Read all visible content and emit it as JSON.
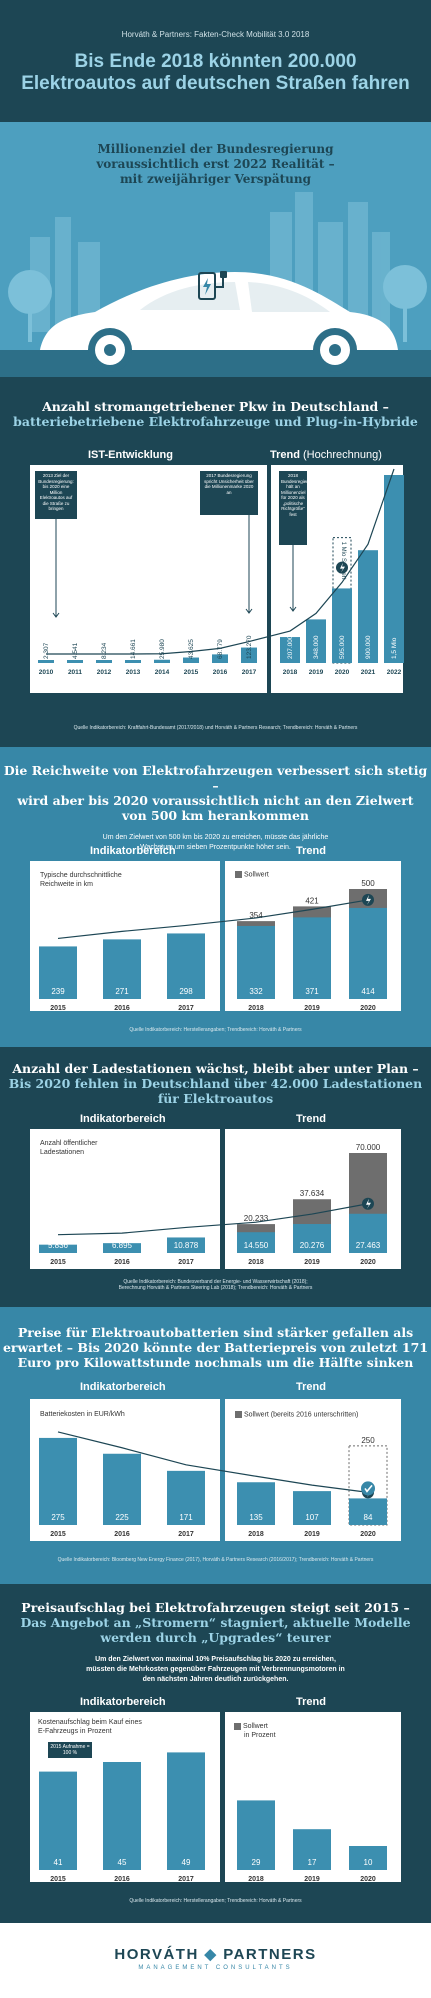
{
  "header": {
    "kicker": "Horváth & Partners: Fakten-Check Mobilität 3.0 2018",
    "title_1": "Bis Ende 2018 könnten 200.000",
    "title_2": "Elektroautos auf deutschen Straßen fahren"
  },
  "hero": {
    "line_1": "Millionenziel der Bundesregierung",
    "line_2": "voraussichtlich erst 2022 Realität –",
    "line_3": "mit zweijähriger Verspätung",
    "icon": "charging-plug-icon"
  },
  "s1": {
    "title_1": "Anzahl stromangetriebener Pkw in Deutschland –",
    "title_2": "batteriebetriebene Elektrofahrzeuge und Plug-in-Hybride",
    "label_ist": "IST-Entwicklung",
    "label_trend": "Trend",
    "label_trend_sub": "(Hochrechnung)",
    "note_2013": "2013 Ziel der Bundesregierung: bis 2020 eine Million Elektroautos auf die Straße zu bringen",
    "note_2017": "2017 Bundesregierung spricht Unsicherheit über die Millionenmarke 2020 an",
    "note_2018": "2018 Bundesregierung hält an Millionenziel für 2020 als „politische Richtgröße“ fest",
    "target_label": "1 Mio Sollwert",
    "source": "Quelle Indikatorbereich: Kraftfahrt-Bundesamt (2017/2018) und Horváth & Partners Research; Trendbereich: Horváth & Partners"
  },
  "s2": {
    "title_1": "Die Reichweite von Elektrofahrzeugen verbessert sich stetig –",
    "title_2": "wird aber bis 2020 voraussichtlich nicht an den Zielwert",
    "title_3": "von 500 km herankommen",
    "subtitle_1": "Um den Zielwert von 500 km bis 2020 zu erreichen, müsste das jährliche",
    "subtitle_2": "Wachstum um sieben Prozentpunkte höher sein.",
    "label_ind": "Indikatorbereich",
    "label_trend": "Trend",
    "panel_label_1": "Typische durchschnittliche",
    "panel_label_2": "Reichweite in km",
    "legend": "Sollwert",
    "source": "Quelle Indikatorbereich: Herstellerangaben; Trendbereich: Horváth & Partners"
  },
  "s3": {
    "title_1": "Anzahl der Ladestationen wächst, bleibt aber unter Plan –",
    "title_2": "Bis 2020 fehlen in Deutschland über 42.000 Ladestationen",
    "title_3": "für Elektroautos",
    "label_ind": "Indikatorbereich",
    "label_trend": "Trend",
    "panel_label_1": "Anzahl öffentlicher",
    "panel_label_2": "Ladestationen",
    "source_1": "Quelle Indikatorbereich: Bundesverband der Energie- und Wasserwirtschaft (2018);",
    "source_2": "Berechnung Horváth & Partners Steering Lab (2018); Trendbereich: Horváth & Partners"
  },
  "s4": {
    "title_1": "Preise für Elektroautobatterien sind stärker gefallen als",
    "title_2": "erwartet – Bis 2020 könnte der Batteriepreis von zuletzt 171",
    "title_3": "Euro pro Kilowattstunde nochmals um die Hälfte sinken",
    "label_ind": "Indikatorbereich",
    "label_trend": "Trend",
    "panel_label": "Batteriekosten in EUR/kWh",
    "legend": "Sollwert (bereits 2016 unterschritten)",
    "source": "Quelle Indikatorbereich: Bloomberg New Energy Finance (2017), Horváth & Partners Research (2016/2017); Trendbereich: Horváth & Partners"
  },
  "s5": {
    "title_1": "Preisaufschlag bei Elektrofahrzeugen steigt seit 2015 –",
    "title_2": "Das Angebot an „Stromern“ stagniert, aktuelle Modelle",
    "title_3": "werden durch „Upgrades“ teurer",
    "subtitle_1": "Um den Zielwert von maximal 10% Preisaufschlag bis 2020 zu erreichen,",
    "subtitle_2": "müssten die Mehrkosten gegenüber Fahrzeugen mit Verbrennungsmotoren in",
    "subtitle_3": "den nächsten Jahren deutlich zurückgehen.",
    "label_ind": "Indikatorbereich",
    "label_trend": "Trend",
    "panel_label_1": "Kostenaufschlag beim Kauf eines",
    "panel_label_2": "E-Fahrzeugs in Prozent",
    "note": "2015 Aufnahme = 100 %",
    "legend_1": "Sollwert",
    "legend_2": "in Prozent",
    "source": "Quelle Indikatorbereich: Herstellerangaben; Trendbereich: Horváth & Partners"
  },
  "footer": {
    "logo_1": "HORVÁTH",
    "logo_2": "PARTNERS",
    "logo_sub": "MANAGEMENT CONSULTANTS"
  },
  "colors": {
    "dark": "#1d4654",
    "teal": "#4a9dbb",
    "bar": "#3c8fb0",
    "target": "#6e6e6e",
    "accent": "#9cd3e6"
  },
  "chart_data": [
    {
      "type": "bar",
      "title": "Anzahl stromangetriebener Pkw in Deutschland – batteriebetriebene Elektrofahrzeuge und Plug-in-Hybride",
      "categories": [
        "2010",
        "2011",
        "2012",
        "2013",
        "2014",
        "2015",
        "2016",
        "2017",
        "2018",
        "2019",
        "2020",
        "2021",
        "2022"
      ],
      "values": [
        2307,
        4541,
        8234,
        14661,
        25980,
        43625,
        68779,
        123270,
        207000,
        348000,
        595000,
        900000,
        1500000
      ],
      "value_labels": [
        "2.307",
        "4.541",
        "8.234",
        "14.661",
        "25.980",
        "43.625",
        "68.779",
        "123.270",
        "207.000",
        "348.000",
        "595.000",
        "900.000",
        "1,5 Mio"
      ],
      "target": 1000000,
      "target_year": "2020",
      "split": "2018"
    },
    {
      "type": "bar",
      "title": "Die Reichweite von Elektrofahrzeugen verbessert sich stetig",
      "categories": [
        "2015",
        "2016",
        "2017",
        "2018",
        "2019",
        "2020"
      ],
      "values": [
        239,
        271,
        298,
        332,
        371,
        414
      ],
      "targets": [
        null,
        null,
        null,
        354,
        421,
        500
      ],
      "ylabel": "Typische durchschnittliche Reichweite in km",
      "split": "2018"
    },
    {
      "type": "bar",
      "title": "Anzahl der Ladestationen",
      "categories": [
        "2015",
        "2016",
        "2017",
        "2018",
        "2019",
        "2020"
      ],
      "values": [
        5836,
        6895,
        10878,
        14550,
        20276,
        27463
      ],
      "value_labels": [
        "5.836",
        "6.895",
        "10.878",
        "14.550",
        "20.276",
        "27.463"
      ],
      "targets": [
        null,
        null,
        null,
        20233,
        37634,
        70000
      ],
      "target_labels": [
        "",
        "",
        "",
        "20.233",
        "37.634",
        "70.000"
      ],
      "ylabel": "Anzahl öffentlicher Ladestationen",
      "split": "2018"
    },
    {
      "type": "bar",
      "title": "Batteriekosten",
      "categories": [
        "2015",
        "2016",
        "2017",
        "2018",
        "2019",
        "2020"
      ],
      "values": [
        275,
        225,
        171,
        135,
        107,
        84
      ],
      "targets": [
        null,
        null,
        null,
        null,
        null,
        250
      ],
      "ylabel": "Batteriekosten in EUR/kWh",
      "split": "2018"
    },
    {
      "type": "bar",
      "title": "Kostenaufschlag beim Kauf eines E-Fahrzeugs in Prozent",
      "categories": [
        "2015",
        "2016",
        "2017",
        "2018",
        "2019",
        "2020"
      ],
      "values": [
        41,
        45,
        49,
        29,
        17,
        10
      ],
      "ylabel": "Kostenaufschlag in Prozent",
      "split": "2018"
    }
  ]
}
